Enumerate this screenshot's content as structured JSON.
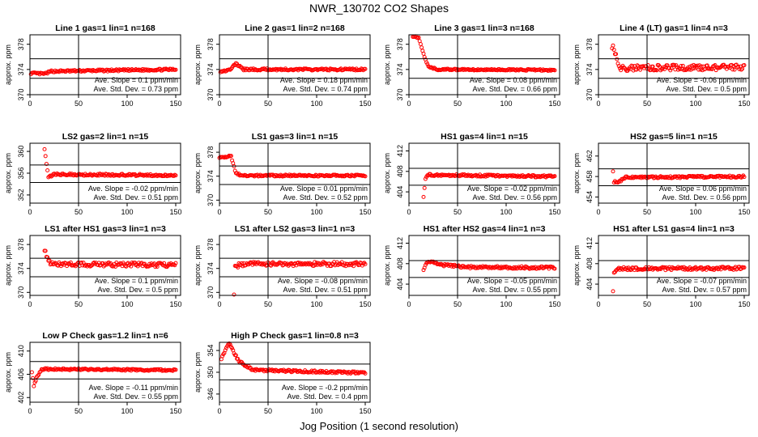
{
  "figure": {
    "title": "NWR_130702  CO2 Shapes",
    "xlabel": "Jog Position (1 second resolution)"
  },
  "chart_data": [
    {
      "type": "scatter",
      "title": "Line 1 gas=1 lin=1 n=168",
      "ylabel": "approx. ppm",
      "xlim": [
        0,
        155
      ],
      "ylim": [
        370,
        379.5
      ],
      "xticks": [
        0,
        50,
        100,
        150
      ],
      "yticks": [
        370,
        374,
        378
      ],
      "hlines": [
        372.6,
        375.7
      ],
      "vline": 50,
      "slope_text": "Ave. Slope =  0.1  ppm/min",
      "std_text": "Ave. Std. Dev. =  0.73  ppm",
      "curve": {
        "base": 373.9,
        "noise": 0.15,
        "start": 1,
        "segments": [
          [
            0,
            373.4
          ],
          [
            15,
            373.3
          ],
          [
            22,
            373.7
          ],
          [
            60,
            373.8
          ],
          [
            150,
            374.0
          ]
        ]
      }
    },
    {
      "type": "scatter",
      "title": "Line 2 gas=1 lin=2 n=168",
      "ylabel": "approx. ppm",
      "xlim": [
        0,
        155
      ],
      "ylim": [
        370,
        379.5
      ],
      "xticks": [
        0,
        50,
        100,
        150
      ],
      "yticks": [
        370,
        374,
        378
      ],
      "hlines": [
        372.6,
        375.7
      ],
      "vline": 50,
      "slope_text": "Ave. Slope =  0.18  ppm/min",
      "std_text": "Ave. Std. Dev. =  0.74  ppm",
      "curve": {
        "base": 374.0,
        "noise": 0.15,
        "start": 1,
        "segments": [
          [
            0,
            373.7
          ],
          [
            10,
            373.9
          ],
          [
            17,
            374.9
          ],
          [
            25,
            374.0
          ],
          [
            150,
            374.0
          ]
        ]
      }
    },
    {
      "type": "scatter",
      "title": "Line 3 gas=1 lin=3 n=168",
      "ylabel": "approx. ppm",
      "xlim": [
        0,
        155
      ],
      "ylim": [
        370,
        379.5
      ],
      "xticks": [
        0,
        50,
        100,
        150
      ],
      "yticks": [
        370,
        374,
        378
      ],
      "hlines": [
        372.6,
        375.7
      ],
      "vline": 50,
      "slope_text": "Ave. Slope =  0.08  ppm/min",
      "std_text": "Ave. Std. Dev. =  0.66  ppm",
      "curve": {
        "base": 374.0,
        "noise": 0.12,
        "start": 4,
        "segments": [
          [
            4,
            379.3
          ],
          [
            10,
            379.0
          ],
          [
            15,
            376.5
          ],
          [
            20,
            374.4
          ],
          [
            30,
            374.0
          ],
          [
            150,
            373.9
          ]
        ]
      }
    },
    {
      "type": "scatter",
      "title": "Line 4 (LT) gas=1 lin=4 n=3",
      "ylabel": "approx. ppm",
      "xlim": [
        0,
        155
      ],
      "ylim": [
        370,
        379.5
      ],
      "xticks": [
        0,
        50,
        100,
        150
      ],
      "yticks": [
        370,
        374,
        378
      ],
      "hlines": [
        372.6,
        375.7
      ],
      "vline": 50,
      "slope_text": "Ave. Slope =  -0.06  ppm/min",
      "std_text": "Ave. Std. Dev. =  0.5  ppm",
      "curve": {
        "base": 374.3,
        "noise": 0.45,
        "start": 14,
        "segments": [
          [
            14,
            377.8
          ],
          [
            17,
            376.5
          ],
          [
            22,
            374.2
          ],
          [
            60,
            374.3
          ],
          [
            150,
            374.3
          ]
        ]
      }
    },
    {
      "type": "scatter",
      "title": "LS2 gas=2 lin=1 n=15",
      "ylabel": "approx. ppm",
      "xlim": [
        0,
        155
      ],
      "ylim": [
        350.5,
        361.5
      ],
      "xticks": [
        0,
        50,
        100,
        150
      ],
      "yticks": [
        352,
        356,
        360
      ],
      "hlines": [
        354.3,
        357.5
      ],
      "vline": 50,
      "slope_text": "Ave. Slope =  -0.02  ppm/min",
      "std_text": "Ave. Std. Dev. =  0.51  ppm",
      "curve": {
        "base": 355.7,
        "noise": 0.2,
        "start": 15,
        "segments": [
          [
            15,
            360.6
          ],
          [
            17,
            357.5
          ],
          [
            19,
            355.2
          ],
          [
            25,
            355.8
          ],
          [
            150,
            355.6
          ]
        ]
      }
    },
    {
      "type": "scatter",
      "title": "LS1 gas=3 lin=1 n=15",
      "ylabel": "approx. ppm",
      "xlim": [
        0,
        155
      ],
      "ylim": [
        369.5,
        379.5
      ],
      "xticks": [
        0,
        50,
        100,
        150
      ],
      "yticks": [
        370,
        374,
        378
      ],
      "hlines": [
        372.6,
        375.7
      ],
      "vline": 50,
      "slope_text": "Ave. Slope =  0.01  ppm/min",
      "std_text": "Ave. Std. Dev. =  0.52  ppm",
      "curve": {
        "base": 374.1,
        "noise": 0.15,
        "start": 0,
        "segments": [
          [
            0,
            377.2
          ],
          [
            12,
            377.3
          ],
          [
            17,
            374.4
          ],
          [
            25,
            374.1
          ],
          [
            150,
            374.1
          ]
        ]
      }
    },
    {
      "type": "scatter",
      "title": "HS1 gas=4 lin=1 n=15",
      "ylabel": "approx. ppm",
      "xlim": [
        0,
        155
      ],
      "ylim": [
        401.8,
        413.5
      ],
      "xticks": [
        0,
        50,
        100,
        150
      ],
      "yticks": [
        404,
        408,
        412
      ],
      "hlines": [
        405.3,
        408.6
      ],
      "vline": 50,
      "slope_text": "Ave. Slope =  -0.02  ppm/min",
      "std_text": "Ave. Std. Dev. =  0.56  ppm",
      "curve": {
        "base": 407.2,
        "noise": 0.2,
        "start": 15,
        "segments": [
          [
            15,
            403.2
          ],
          [
            17,
            406.5
          ],
          [
            20,
            407.3
          ],
          [
            150,
            407.0
          ]
        ]
      }
    },
    {
      "type": "scatter",
      "title": "HS2 gas=5 lin=1 n=15",
      "ylabel": "approx. ppm",
      "xlim": [
        0,
        155
      ],
      "ylim": [
        452.8,
        464.5
      ],
      "xticks": [
        0,
        50,
        100,
        150
      ],
      "yticks": [
        454,
        458,
        462
      ],
      "hlines": [
        456.2,
        459.5
      ],
      "vline": 50,
      "slope_text": "Ave. Slope =  0.06  ppm/min",
      "std_text": "Ave. Std. Dev. =  0.56  ppm",
      "curve": {
        "base": 457.9,
        "noise": 0.2,
        "start": 15,
        "segments": [
          [
            15,
            459.2
          ],
          [
            16,
            457.0
          ],
          [
            20,
            456.8
          ],
          [
            27,
            457.8
          ],
          [
            150,
            458.0
          ]
        ]
      }
    },
    {
      "type": "scatter",
      "title": "LS1 after HS1 gas=3 lin=1 n=3",
      "ylabel": "approx. ppm",
      "xlim": [
        0,
        155
      ],
      "ylim": [
        369.5,
        379.5
      ],
      "xticks": [
        0,
        50,
        100,
        150
      ],
      "yticks": [
        370,
        374,
        378
      ],
      "hlines": [
        372.6,
        375.7
      ],
      "vline": 50,
      "slope_text": "Ave. Slope =  0.1  ppm/min",
      "std_text": "Ave. Std. Dev. =  0.5  ppm",
      "curve": {
        "base": 374.7,
        "noise": 0.35,
        "start": 15,
        "segments": [
          [
            15,
            377.3
          ],
          [
            18,
            375.6
          ],
          [
            22,
            374.7
          ],
          [
            150,
            374.6
          ]
        ]
      }
    },
    {
      "type": "scatter",
      "title": "LS1 after LS2 gas=3 lin=1 n=3",
      "ylabel": "approx. ppm",
      "xlim": [
        0,
        155
      ],
      "ylim": [
        369.5,
        379.5
      ],
      "xticks": [
        0,
        50,
        100,
        150
      ],
      "yticks": [
        370,
        374,
        378
      ],
      "hlines": [
        372.6,
        375.7
      ],
      "vline": 50,
      "slope_text": "Ave. Slope =  -0.08  ppm/min",
      "std_text": "Ave. Std. Dev. =  0.51  ppm",
      "curve": {
        "base": 374.7,
        "noise": 0.35,
        "start": 15,
        "segments": [
          [
            15,
            369.9
          ],
          [
            16,
            374.4
          ],
          [
            30,
            374.8
          ],
          [
            150,
            374.7
          ]
        ]
      }
    },
    {
      "type": "scatter",
      "title": "HS1 after HS2 gas=4 lin=1 n=3",
      "ylabel": "approx. ppm",
      "xlim": [
        0,
        155
      ],
      "ylim": [
        401.8,
        413.5
      ],
      "xticks": [
        0,
        50,
        100,
        150
      ],
      "yticks": [
        404,
        408,
        412
      ],
      "hlines": [
        405.3,
        408.6
      ],
      "vline": 50,
      "slope_text": "Ave. Slope =  -0.05  ppm/min",
      "std_text": "Ave. Std. Dev. =  0.55  ppm",
      "curve": {
        "base": 407.3,
        "noise": 0.25,
        "start": 15,
        "segments": [
          [
            15,
            407.0
          ],
          [
            20,
            408.5
          ],
          [
            30,
            407.8
          ],
          [
            60,
            407.3
          ],
          [
            150,
            407.2
          ]
        ]
      }
    },
    {
      "type": "scatter",
      "title": "HS1 after LS1 gas=4 lin=1 n=3",
      "ylabel": "approx. ppm",
      "xlim": [
        0,
        155
      ],
      "ylim": [
        401.8,
        413.5
      ],
      "xticks": [
        0,
        50,
        100,
        150
      ],
      "yticks": [
        404,
        408,
        412
      ],
      "hlines": [
        405.3,
        408.6
      ],
      "vline": 50,
      "slope_text": "Ave. Slope =  -0.07  ppm/min",
      "std_text": "Ave. Std. Dev. =  0.57  ppm",
      "curve": {
        "base": 407.1,
        "noise": 0.3,
        "start": 15,
        "segments": [
          [
            15,
            402.9
          ],
          [
            16,
            406.5
          ],
          [
            20,
            407.0
          ],
          [
            150,
            407.1
          ]
        ]
      }
    },
    {
      "type": "scatter",
      "title": "Low P Check gas=1.2 lin=1 n=6",
      "ylabel": "approx. ppm",
      "xlim": [
        0,
        155
      ],
      "ylim": [
        401.2,
        411.5
      ],
      "xticks": [
        0,
        50,
        100,
        150
      ],
      "yticks": [
        402,
        406,
        410
      ],
      "hlines": [
        405.2,
        408.2
      ],
      "vline": 50,
      "slope_text": "Ave. Slope =  -0.11  ppm/min",
      "std_text": "Ave. Std. Dev. =  0.55  ppm",
      "curve": {
        "base": 407.0,
        "noise": 0.15,
        "start": 2,
        "segments": [
          [
            2,
            406.5
          ],
          [
            4,
            404.0
          ],
          [
            7,
            405.5
          ],
          [
            12,
            406.9
          ],
          [
            150,
            406.7
          ]
        ]
      }
    },
    {
      "type": "scatter",
      "title": "High P Check gas=1 lin=0.8 n=3",
      "ylabel": "approx. ppm",
      "xlim": [
        0,
        155
      ],
      "ylim": [
        344.5,
        355.5
      ],
      "xticks": [
        0,
        50,
        100,
        150
      ],
      "yticks": [
        346,
        350,
        354
      ],
      "hlines": [
        348.6,
        351.5
      ],
      "vline": 50,
      "slope_text": "Ave. Slope =  -0.2  ppm/min",
      "std_text": "Ave. Std. Dev. =  0.4  ppm",
      "curve": {
        "base": 350.2,
        "noise": 0.2,
        "start": 2,
        "segments": [
          [
            2,
            352.6
          ],
          [
            10,
            355.3
          ],
          [
            20,
            352.0
          ],
          [
            35,
            350.4
          ],
          [
            80,
            350.2
          ],
          [
            150,
            349.9
          ]
        ]
      }
    }
  ]
}
